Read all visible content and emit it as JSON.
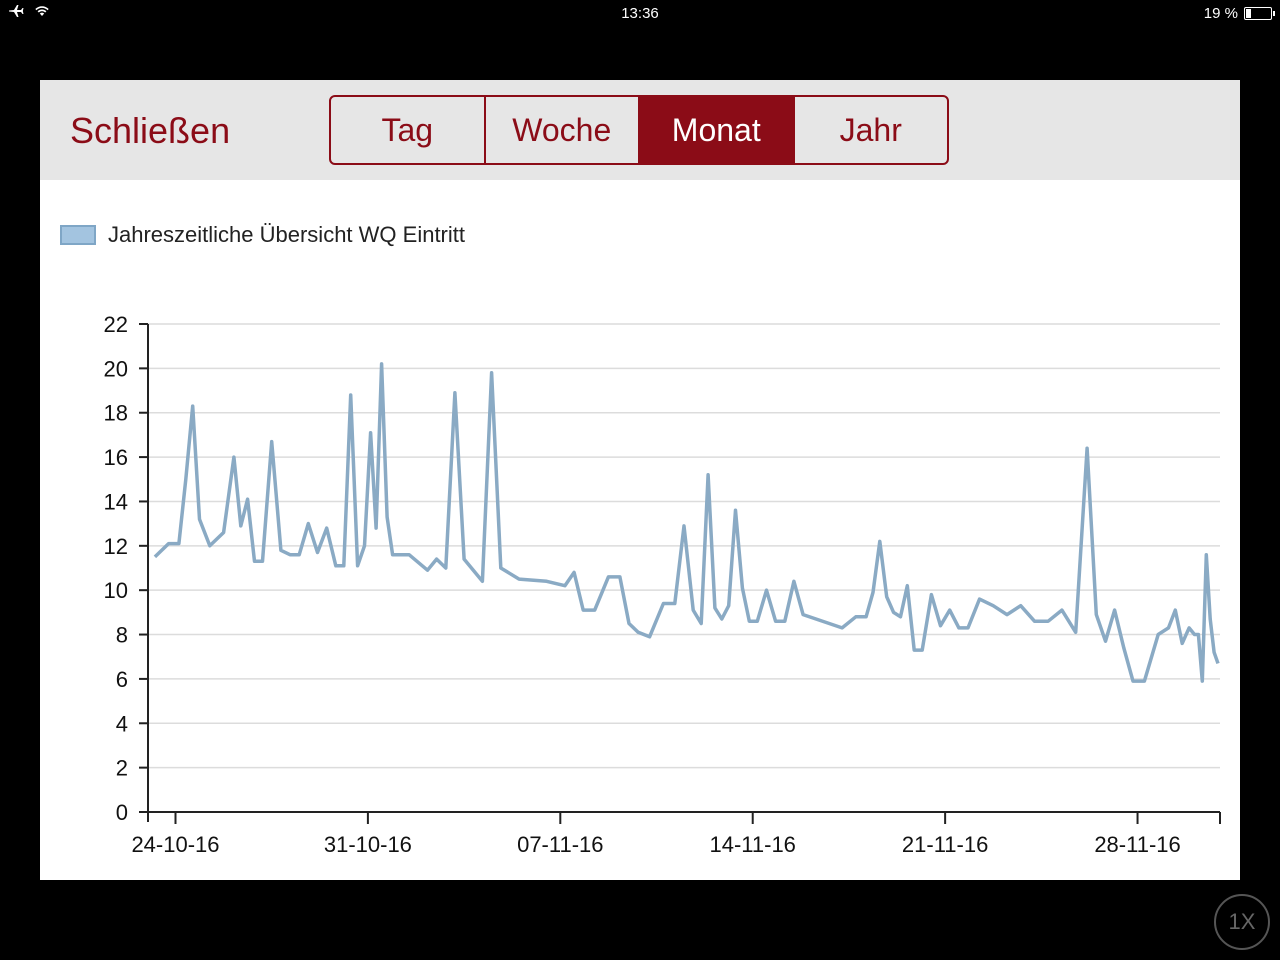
{
  "statusbar": {
    "time": "13:36",
    "battery_text": "19 %",
    "battery_level": 0.19,
    "icons": [
      "airplane-icon",
      "wifi-icon",
      "battery-icon"
    ]
  },
  "toolbar": {
    "close_label": "Schließen",
    "tabs": [
      {
        "label": "Tag",
        "active": false
      },
      {
        "label": "Woche",
        "active": false
      },
      {
        "label": "Monat",
        "active": true
      },
      {
        "label": "Jahr",
        "active": false
      }
    ]
  },
  "colors": {
    "accent": "#8b0c17",
    "toolbar_bg": "#e6e6e6",
    "series_line": "#8aaac4",
    "legend_fill": "#a3c4e0"
  },
  "zoom_badge": "1X",
  "chart_data": {
    "type": "line",
    "title": "",
    "xlabel": "",
    "ylabel": "",
    "ylim": [
      0,
      22
    ],
    "yticks": [
      0,
      2,
      4,
      6,
      8,
      10,
      12,
      14,
      16,
      18,
      20,
      22
    ],
    "xticks": [
      "24-10-16",
      "31-10-16",
      "07-11-16",
      "14-11-16",
      "21-11-16",
      "28-11-16"
    ],
    "x_start": "23-10-16",
    "x_end": "30-11-16",
    "grid": true,
    "legend_position": "top-left",
    "series": [
      {
        "name": "Jahreszeitliche Übersicht WQ Eintritt",
        "points": [
          [
            "23-10-16",
            11.5
          ],
          [
            "23-10-16",
            12.1
          ],
          [
            "24-10-16",
            12.1
          ],
          [
            "24-10-16",
            15.0
          ],
          [
            "24-10-16",
            18.3
          ],
          [
            "24-10-16",
            13.2
          ],
          [
            "25-10-16",
            12.0
          ],
          [
            "25-10-16",
            12.6
          ],
          [
            "26-10-16",
            16.0
          ],
          [
            "26-10-16",
            12.9
          ],
          [
            "26-10-16",
            14.1
          ],
          [
            "26-10-16",
            11.3
          ],
          [
            "27-10-16",
            11.3
          ],
          [
            "27-10-16",
            16.7
          ],
          [
            "27-10-16",
            11.8
          ],
          [
            "28-10-16",
            11.6
          ],
          [
            "28-10-16",
            11.6
          ],
          [
            "28-10-16",
            13.0
          ],
          [
            "29-10-16",
            11.7
          ],
          [
            "29-10-16",
            12.8
          ],
          [
            "29-10-16",
            11.1
          ],
          [
            "30-10-16",
            11.1
          ],
          [
            "30-10-16",
            18.8
          ],
          [
            "30-10-16",
            11.1
          ],
          [
            "30-10-16",
            12.0
          ],
          [
            "31-10-16",
            17.1
          ],
          [
            "31-10-16",
            12.8
          ],
          [
            "31-10-16",
            20.2
          ],
          [
            "31-10-16",
            13.3
          ],
          [
            "31-10-16",
            11.6
          ],
          [
            "01-11-16",
            11.6
          ],
          [
            "02-11-16",
            10.9
          ],
          [
            "02-11-16",
            11.4
          ],
          [
            "02-11-16",
            11.0
          ],
          [
            "03-11-16",
            18.9
          ],
          [
            "03-11-16",
            11.4
          ],
          [
            "03-11-16",
            10.9
          ],
          [
            "04-11-16",
            10.4
          ],
          [
            "04-11-16",
            19.8
          ],
          [
            "04-11-16",
            11.0
          ],
          [
            "05-11-16",
            10.5
          ],
          [
            "06-11-16",
            10.4
          ],
          [
            "07-11-16",
            10.2
          ],
          [
            "07-11-16",
            10.8
          ],
          [
            "07-11-16",
            9.1
          ],
          [
            "08-11-16",
            9.1
          ],
          [
            "08-11-16",
            10.6
          ],
          [
            "09-11-16",
            10.6
          ],
          [
            "09-11-16",
            8.5
          ],
          [
            "09-11-16",
            8.1
          ],
          [
            "10-11-16",
            7.9
          ],
          [
            "10-11-16",
            9.4
          ],
          [
            "11-11-16",
            9.4
          ],
          [
            "11-11-16",
            12.9
          ],
          [
            "11-11-16",
            9.1
          ],
          [
            "12-11-16",
            8.5
          ],
          [
            "12-11-16",
            15.2
          ],
          [
            "12-11-16",
            9.2
          ],
          [
            "12-11-16",
            8.7
          ],
          [
            "13-11-16",
            9.3
          ],
          [
            "13-11-16",
            13.6
          ],
          [
            "13-11-16",
            10.1
          ],
          [
            "13-11-16",
            8.6
          ],
          [
            "14-11-16",
            8.6
          ],
          [
            "14-11-16",
            10.0
          ],
          [
            "14-11-16",
            8.6
          ],
          [
            "15-11-16",
            8.6
          ],
          [
            "15-11-16",
            10.4
          ],
          [
            "15-11-16",
            8.9
          ],
          [
            "17-11-16",
            8.3
          ],
          [
            "17-11-16",
            8.8
          ],
          [
            "18-11-16",
            8.8
          ],
          [
            "18-11-16",
            9.9
          ],
          [
            "18-11-16",
            12.2
          ],
          [
            "18-11-16",
            9.7
          ],
          [
            "19-11-16",
            9.0
          ],
          [
            "19-11-16",
            8.8
          ],
          [
            "19-11-16",
            10.2
          ],
          [
            "19-11-16",
            7.3
          ],
          [
            "20-11-16",
            7.3
          ],
          [
            "20-11-16",
            9.8
          ],
          [
            "20-11-16",
            8.4
          ],
          [
            "21-11-16",
            9.1
          ],
          [
            "21-11-16",
            8.3
          ],
          [
            "21-11-16",
            8.3
          ],
          [
            "22-11-16",
            9.6
          ],
          [
            "22-11-16",
            9.3
          ],
          [
            "23-11-16",
            8.9
          ],
          [
            "23-11-16",
            9.3
          ],
          [
            "24-11-16",
            8.6
          ],
          [
            "24-11-16",
            8.6
          ],
          [
            "25-11-16",
            9.1
          ],
          [
            "25-11-16",
            8.1
          ],
          [
            "26-11-16",
            16.4
          ],
          [
            "26-11-16",
            8.9
          ],
          [
            "26-11-16",
            7.7
          ],
          [
            "27-11-16",
            9.1
          ],
          [
            "27-11-16",
            7.4
          ],
          [
            "27-11-16",
            5.9
          ],
          [
            "28-11-16",
            5.9
          ],
          [
            "28-11-16",
            8.0
          ],
          [
            "29-11-16",
            8.3
          ],
          [
            "29-11-16",
            9.1
          ],
          [
            "29-11-16",
            7.6
          ],
          [
            "29-11-16",
            8.3
          ],
          [
            "30-11-16",
            8.0
          ],
          [
            "30-11-16",
            8.0
          ],
          [
            "30-11-16",
            5.9
          ],
          [
            "30-11-16",
            11.6
          ],
          [
            "30-11-16",
            8.7
          ],
          [
            "30-11-16",
            7.2
          ],
          [
            "30-11-16",
            6.7
          ]
        ]
      }
    ]
  }
}
